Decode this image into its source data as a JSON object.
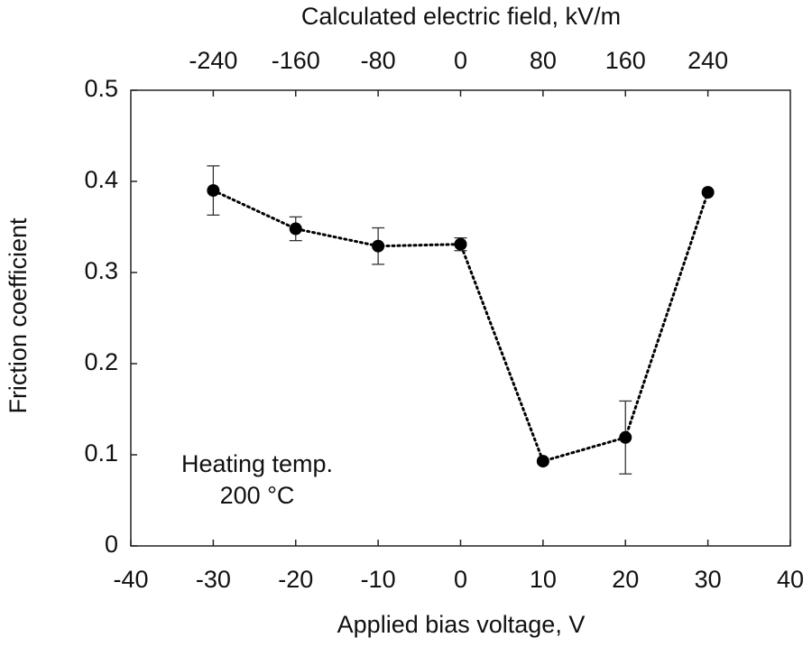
{
  "chart_data": {
    "type": "scatter",
    "title": "Calculated electric field, kV/m",
    "x_label": "Applied bias voltage, V",
    "y_label": "Friction coefficient",
    "annotation": [
      "Heating temp.",
      "200 °C"
    ],
    "x": [
      -30,
      -20,
      -10,
      0,
      10,
      20,
      30
    ],
    "series": [
      {
        "color": "#000000",
        "values": [
          0.39,
          0.348,
          0.329,
          0.331,
          0.093,
          0.119,
          0.388
        ],
        "errors": [
          0.027,
          0.013,
          0.02,
          0.007,
          null,
          0.04,
          null
        ]
      }
    ],
    "xlim": [
      -40,
      40
    ],
    "xticks": [
      -40,
      -30,
      -20,
      -10,
      0,
      10,
      20,
      30,
      40
    ],
    "x2lim": [
      -320,
      320
    ],
    "x2ticks": [
      -240,
      -160,
      -80,
      0,
      80,
      160,
      240
    ],
    "ylim": [
      0,
      0.5
    ],
    "yticks": [
      0,
      0.1,
      0.2,
      0.3,
      0.4,
      0.5
    ],
    "line_style": "dotted"
  }
}
